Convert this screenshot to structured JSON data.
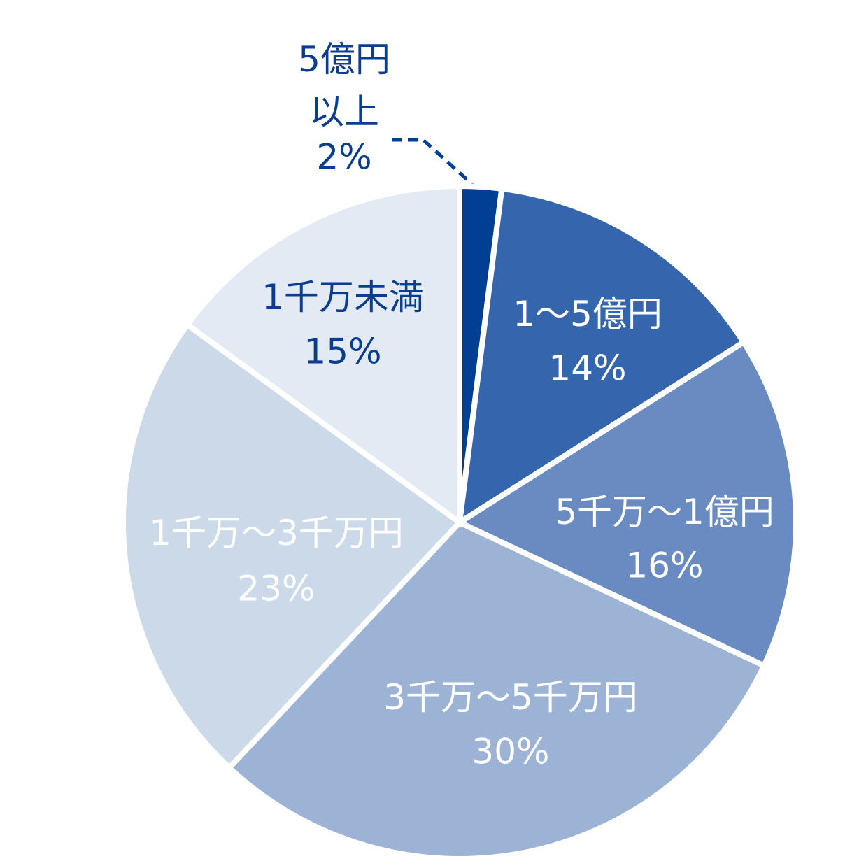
{
  "chart_data": {
    "type": "pie",
    "categories": [
      "5億円\n以上",
      "1〜5億円",
      "5千万〜1億円",
      "3千万〜5千万円",
      "1千万〜3千万円",
      "1千万未満"
    ],
    "values": [
      2,
      14,
      16,
      30,
      23,
      15
    ],
    "value_labels": [
      "2%",
      "14%",
      "16%",
      "30%",
      "23%",
      "15%"
    ],
    "colors": [
      "#003f94",
      "#3566ad",
      "#6a8bc1",
      "#9cb3d6",
      "#ccd9e9",
      "#e3eaf4"
    ]
  }
}
